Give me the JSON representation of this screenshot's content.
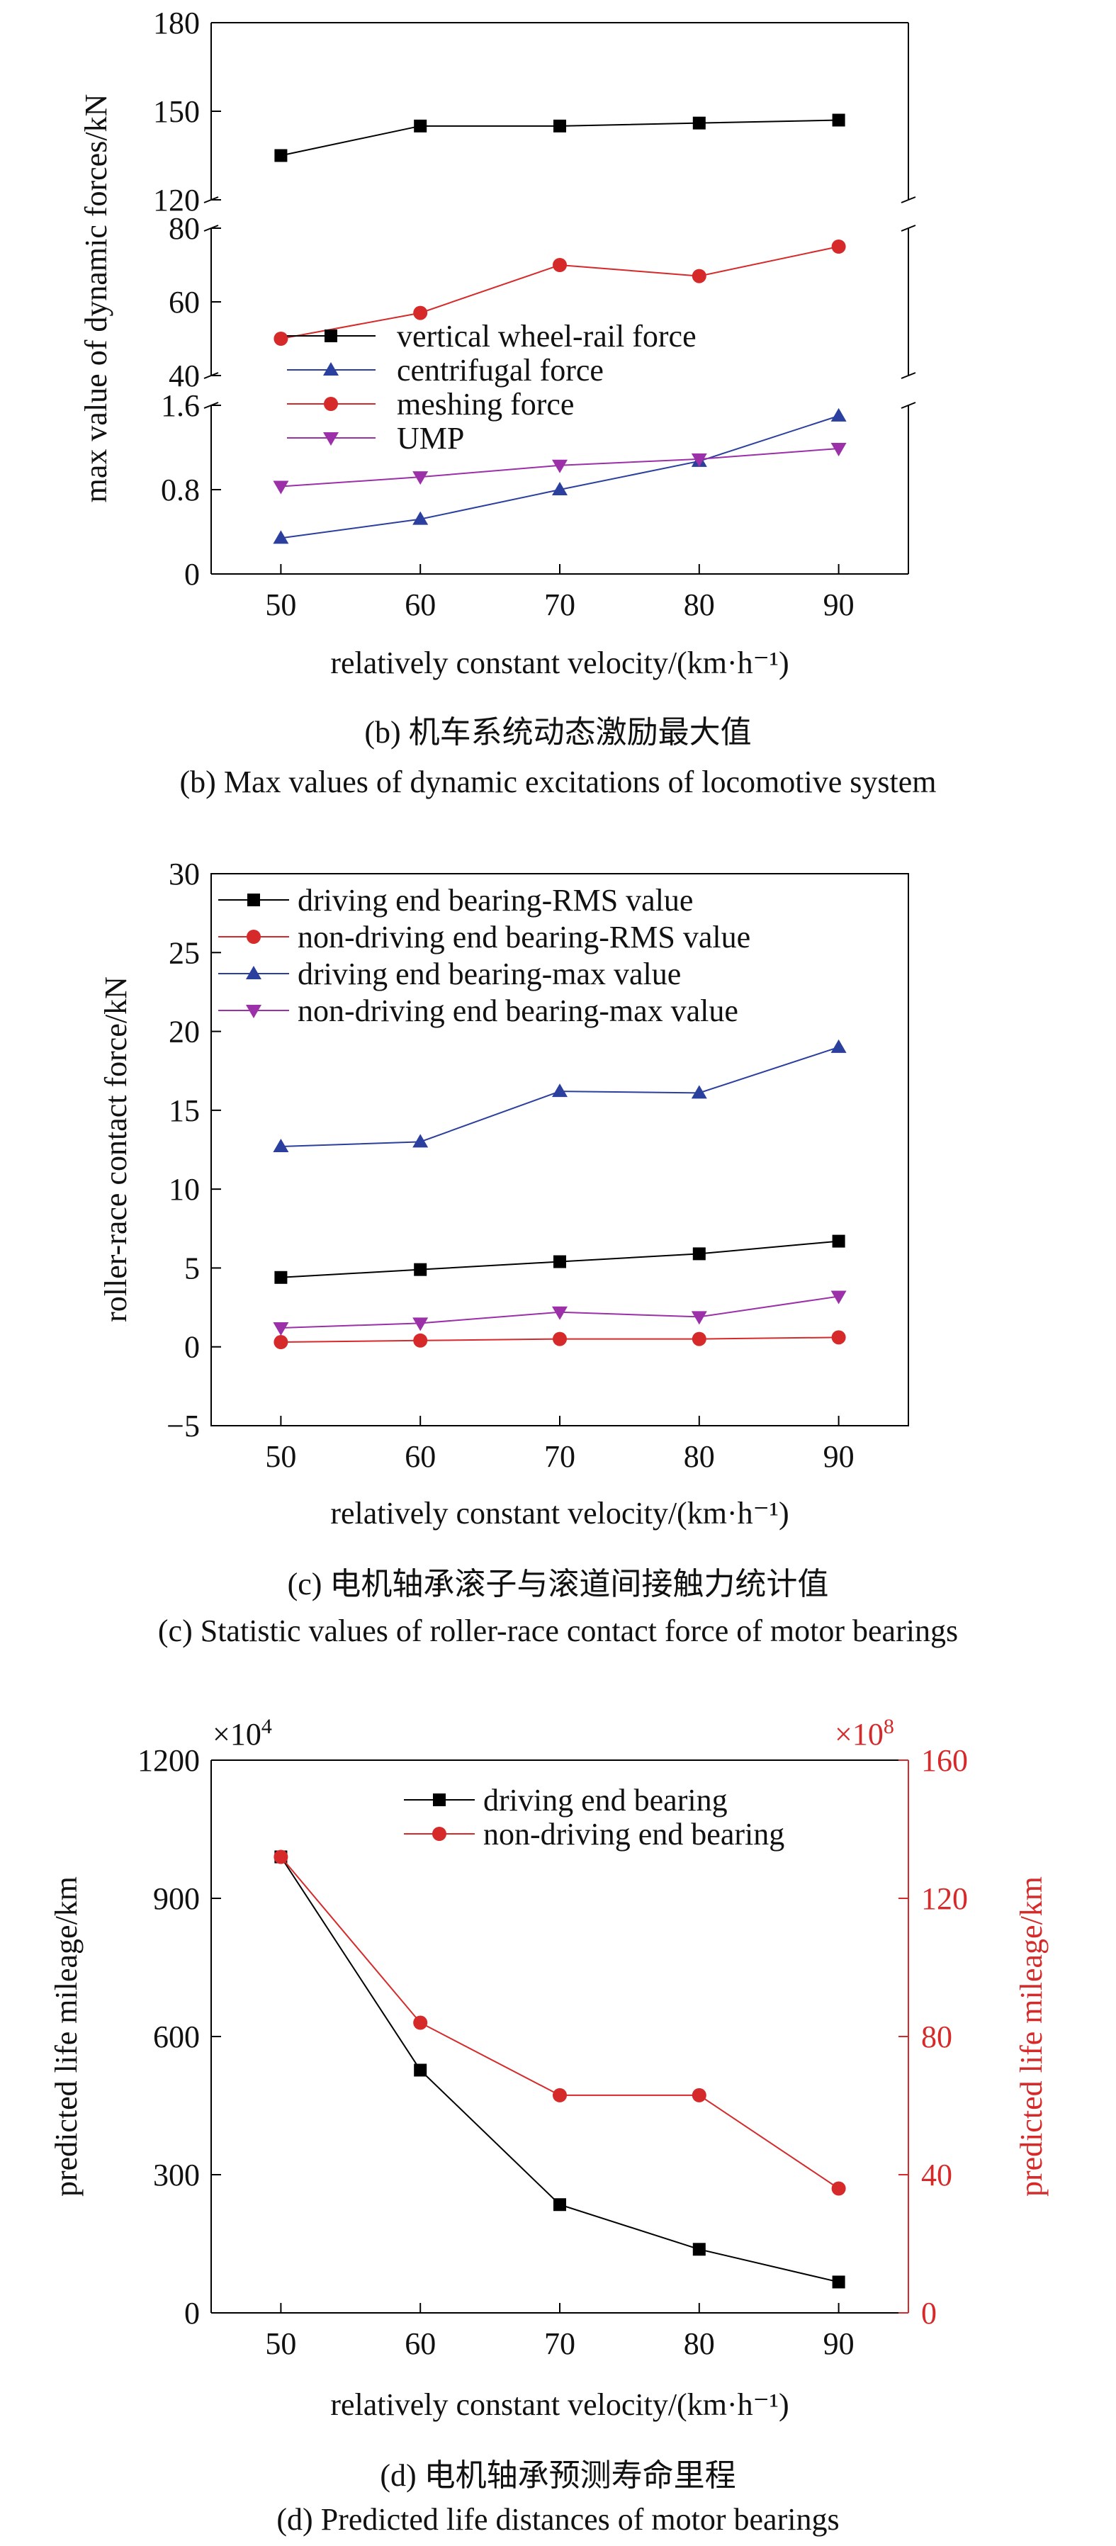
{
  "chart_data": [
    {
      "id": "b",
      "type": "line",
      "panels": [
        {
          "name": "top",
          "ylim": [
            120,
            180
          ],
          "yticks": [
            120,
            150,
            180
          ]
        },
        {
          "name": "middle",
          "ylim": [
            40,
            80
          ],
          "yticks": [
            40,
            60,
            80
          ]
        },
        {
          "name": "bottom",
          "ylim": [
            0,
            1.6
          ],
          "yticks": [
            0,
            0.8,
            1.6
          ]
        }
      ],
      "x": [
        50,
        60,
        70,
        80,
        90
      ],
      "xlim": [
        45,
        95
      ],
      "xticks": [
        50,
        60,
        70,
        80,
        90
      ],
      "xlabel": "relatively constant velocity/(km·h⁻¹)",
      "ylabel": "max value of dynamic forces/kN",
      "series": [
        {
          "name": "vertical wheel-rail force",
          "panel": "top",
          "marker": "square",
          "color": "#000000",
          "values": [
            135,
            145,
            145,
            146,
            147
          ]
        },
        {
          "name": "centrifugal force",
          "panel": "bottom",
          "marker": "triangle-up",
          "color": "#2b3f9e",
          "values": [
            0.34,
            0.52,
            0.8,
            1.07,
            1.5
          ]
        },
        {
          "name": "meshing force",
          "panel": "middle",
          "marker": "circle",
          "color": "#d62a2a",
          "values": [
            50,
            57,
            70,
            67,
            75
          ]
        },
        {
          "name": "UMP",
          "panel": "bottom",
          "marker": "triangle-down",
          "color": "#9b30a8",
          "values": [
            0.83,
            0.92,
            1.03,
            1.09,
            1.19
          ]
        }
      ],
      "caption_cn": "(b) 机车系统动态激励最大值",
      "caption_en": "(b) Max values of dynamic excitations of locomotive system"
    },
    {
      "id": "c",
      "type": "line",
      "x": [
        50,
        60,
        70,
        80,
        90
      ],
      "xlim": [
        45,
        95
      ],
      "xticks": [
        50,
        60,
        70,
        80,
        90
      ],
      "ylim": [
        -5,
        30
      ],
      "yticks": [
        -5,
        0,
        5,
        10,
        15,
        20,
        25,
        30
      ],
      "xlabel": "relatively constant velocity/(km·h⁻¹)",
      "ylabel": "roller-race contact force/kN",
      "series": [
        {
          "name": "driving end bearing-RMS value",
          "marker": "square",
          "color": "#000000",
          "values": [
            4.4,
            4.9,
            5.4,
            5.9,
            6.7
          ]
        },
        {
          "name": "non-driving end bearing-RMS value",
          "marker": "circle",
          "color": "#d62a2a",
          "values": [
            0.3,
            0.4,
            0.5,
            0.5,
            0.6
          ]
        },
        {
          "name": "driving end bearing-max value",
          "marker": "triangle-up",
          "color": "#2b3f9e",
          "values": [
            12.7,
            13.0,
            16.2,
            16.1,
            19.0
          ]
        },
        {
          "name": "non-driving end bearing-max value",
          "marker": "triangle-down",
          "color": "#9b30a8",
          "values": [
            1.2,
            1.5,
            2.2,
            1.9,
            3.2
          ]
        }
      ],
      "caption_cn": "(c) 电机轴承滚子与滚道间接触力统计值",
      "caption_en": "(c) Statistic values of roller-race contact force of motor bearings"
    },
    {
      "id": "d",
      "type": "line",
      "x": [
        50,
        60,
        70,
        80,
        90
      ],
      "xlim": [
        45,
        95
      ],
      "xticks": [
        50,
        60,
        70,
        80,
        90
      ],
      "ylim": [
        0,
        1200
      ],
      "yticks": [
        0,
        300,
        600,
        900,
        1200
      ],
      "y2lim": [
        0,
        160
      ],
      "y2ticks": [
        0,
        40,
        80,
        120,
        160
      ],
      "y_multiplier": "×10",
      "y_multiplier_exp": "4",
      "y2_multiplier": "×10",
      "y2_multiplier_exp": "8",
      "xlabel": "relatively constant velocity/(km·h⁻¹)",
      "ylabel": "predicted life mileage/km",
      "y2label": "predicted life mileage/km",
      "series": [
        {
          "name": "driving end bearing",
          "axis": "left",
          "marker": "square",
          "color": "#000000",
          "values": [
            990,
            527,
            235,
            138,
            67
          ]
        },
        {
          "name": "non-driving end bearing",
          "axis": "right",
          "marker": "circle",
          "color": "#d62a2a",
          "values": [
            132,
            84,
            63,
            63,
            36
          ]
        }
      ],
      "caption_cn": "(d) 电机轴承预测寿命里程",
      "caption_en": "(d) Predicted life distances of motor bearings"
    }
  ]
}
